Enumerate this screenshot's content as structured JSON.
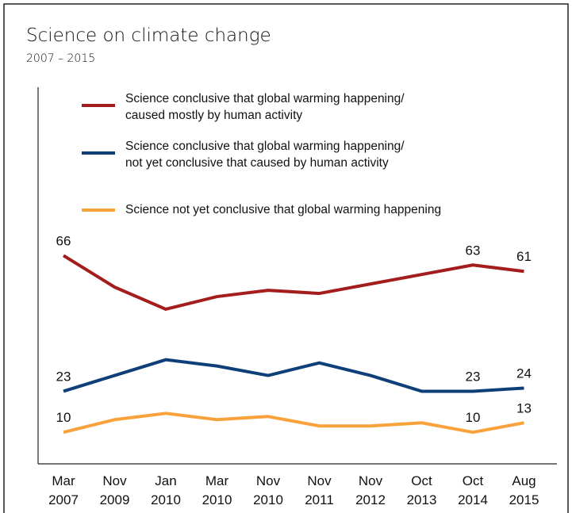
{
  "chart_data": {
    "type": "line",
    "title": "Science on climate change",
    "subtitle": "2007 – 2015",
    "categories": [
      "Mar 2007",
      "Nov 2009",
      "Jan 2010",
      "Mar 2010",
      "Nov 2010",
      "Nov 2011",
      "Nov 2012",
      "Oct 2013",
      "Oct 2014",
      "Aug 2015"
    ],
    "series": [
      {
        "name": "Science conclusive that global warming happening/ caused mostly by human activity",
        "color": "#a51c1c",
        "values": [
          66,
          56,
          49,
          53,
          55,
          54,
          57,
          60,
          63,
          61
        ],
        "value_labels": [
          "66",
          null,
          null,
          null,
          null,
          null,
          null,
          null,
          "63",
          "61"
        ]
      },
      {
        "name": "Science conclusive that global warming happening/ not yet conclusive that caused by human activity",
        "color": "#0f3f78",
        "values": [
          23,
          28,
          33,
          31,
          28,
          32,
          28,
          23,
          23,
          24
        ],
        "value_labels": [
          "23",
          null,
          null,
          null,
          null,
          null,
          null,
          null,
          "23",
          "24"
        ]
      },
      {
        "name": "Science not yet conclusive that global warming happening",
        "color": "#f9a23c",
        "values": [
          10,
          14,
          16,
          14,
          15,
          12,
          12,
          13,
          10,
          13
        ],
        "value_labels": [
          "10",
          null,
          null,
          null,
          null,
          null,
          null,
          null,
          "10",
          "13"
        ]
      }
    ],
    "ylim": [
      0,
      100
    ]
  }
}
